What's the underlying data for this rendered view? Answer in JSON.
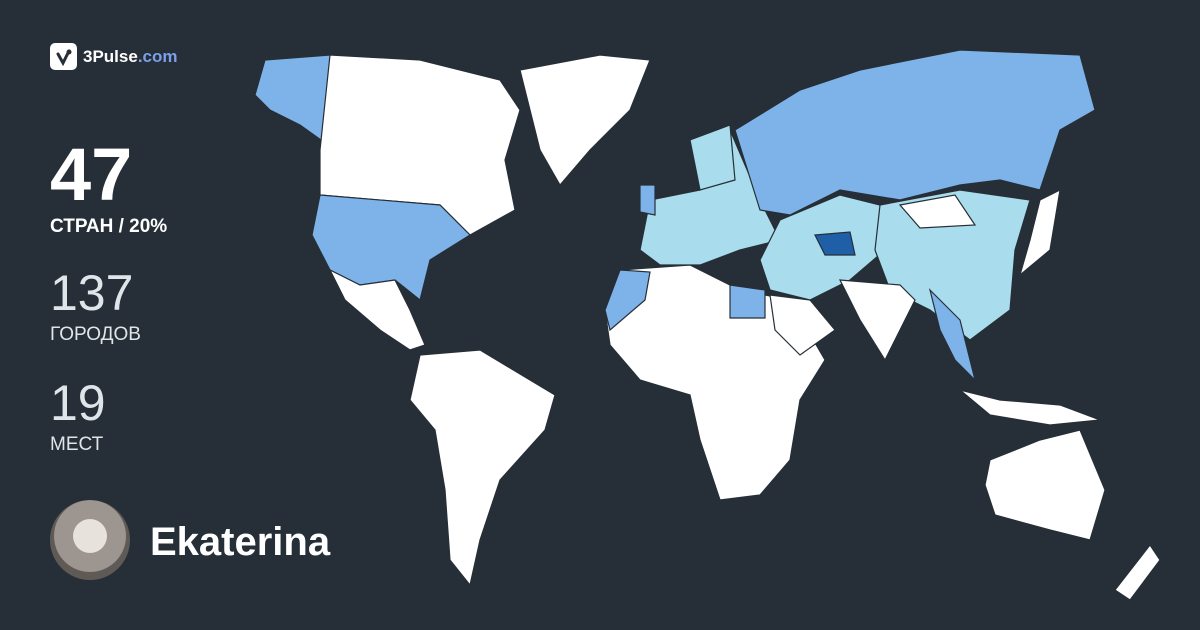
{
  "brand": {
    "name": "3Pulse",
    "domain": ".com",
    "icon": "check-pulse-icon"
  },
  "stats": {
    "countries": {
      "value": "47",
      "label": "СТРАН / 20%"
    },
    "cities": {
      "value": "137",
      "label": "ГОРОДОВ"
    },
    "places": {
      "value": "19",
      "label": "МЕСТ"
    }
  },
  "user": {
    "name": "Ekaterina"
  },
  "colors": {
    "background": "#262f37",
    "land": "#ffffff",
    "visited_high": "#7eb3ea",
    "visited_low": "#a9dcec",
    "visited_top": "#1f5fa8",
    "borders": "#262f37"
  }
}
